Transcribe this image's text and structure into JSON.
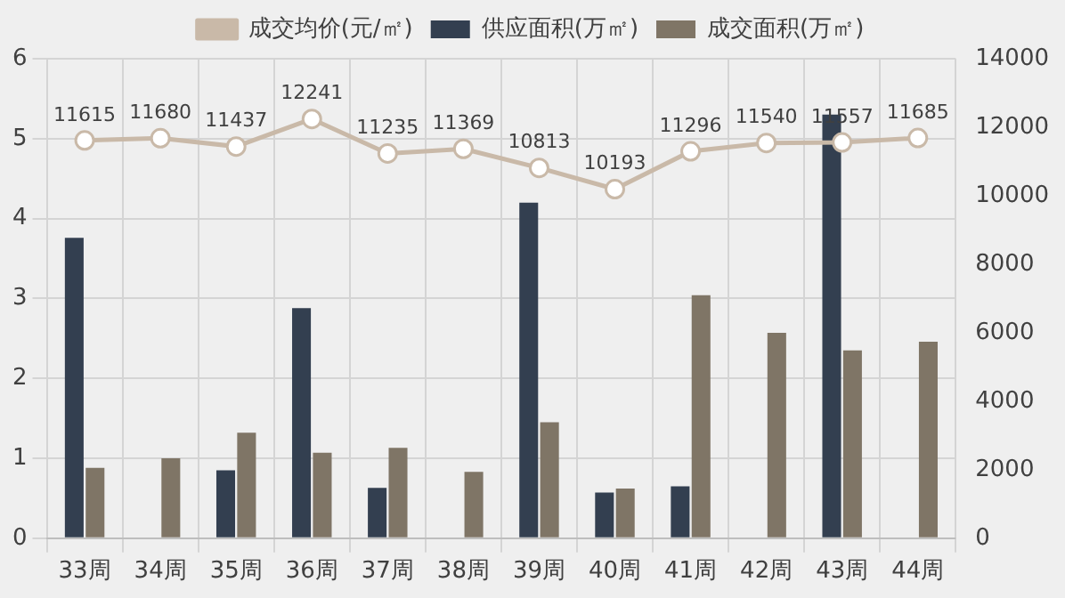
{
  "chart_data": {
    "type": "bar",
    "categories": [
      "33周",
      "34周",
      "35周",
      "36周",
      "37周",
      "38周",
      "39周",
      "40周",
      "41周",
      "42周",
      "43周",
      "44周"
    ],
    "series": [
      {
        "name": "供应面积(万㎡)",
        "color": "#333f50",
        "values": [
          3.76,
          null,
          0.85,
          2.88,
          0.63,
          null,
          4.2,
          0.57,
          0.65,
          null,
          5.3,
          null
        ]
      },
      {
        "name": "成交面积(万㎡)",
        "color": "#7f7566",
        "values": [
          0.88,
          1.0,
          1.32,
          1.07,
          1.13,
          0.83,
          1.45,
          0.62,
          3.04,
          2.57,
          2.35,
          2.46
        ]
      },
      {
        "name": "成交均价(元/㎡)",
        "type": "line",
        "axis": "y2",
        "color": "#c9b9a8",
        "marker": "circle",
        "values": [
          11615,
          11680,
          11437,
          12241,
          11235,
          11369,
          10813,
          10193,
          11296,
          11540,
          11557,
          11685
        ],
        "value_labels": [
          "11615",
          "11680",
          "11437",
          "12241",
          "11235",
          "11369",
          "10813",
          "10193",
          "11296",
          "11540",
          "11557",
          "11685"
        ]
      }
    ],
    "ylim": [
      0,
      6
    ],
    "yticks": [
      0,
      1,
      2,
      3,
      4,
      5,
      6
    ],
    "y2lim": [
      0,
      14000
    ],
    "y2ticks": [
      0,
      2000,
      4000,
      6000,
      8000,
      10000,
      12000,
      14000
    ],
    "grid": true,
    "legend": "top"
  }
}
